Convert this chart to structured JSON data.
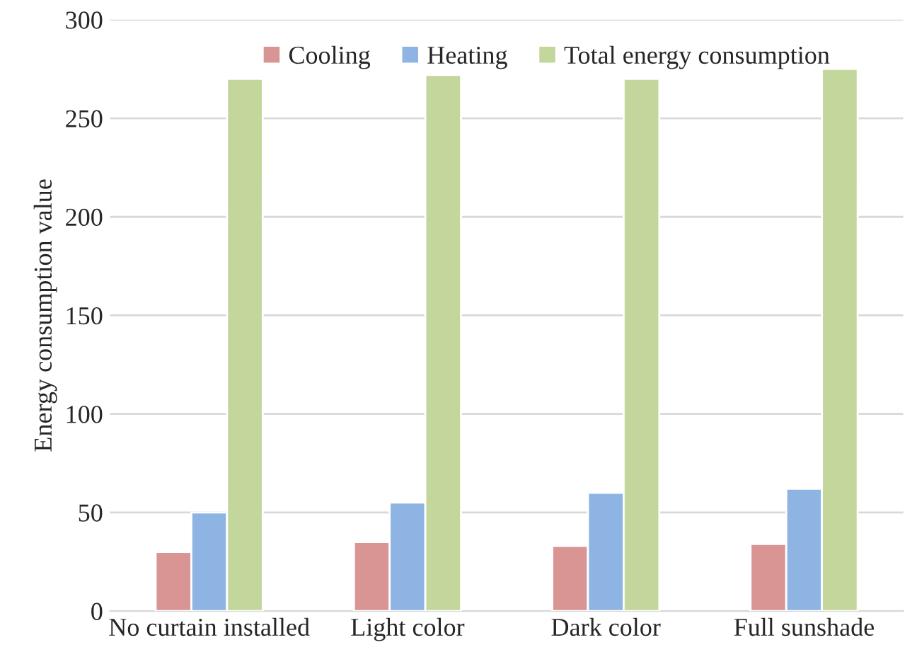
{
  "chart_data": {
    "type": "bar",
    "ylabel": "Energy consumption value",
    "categories": [
      "No curtain installed",
      "Light color",
      "Dark color",
      "Full sunshade"
    ],
    "series": [
      {
        "name": "Cooling",
        "color": "#d99594",
        "values": [
          30,
          35,
          33,
          34
        ]
      },
      {
        "name": "Heating",
        "color": "#8eb4e3",
        "values": [
          50,
          55,
          60,
          62
        ]
      },
      {
        "name": "Total energy consumption",
        "color": "#c3d69b",
        "values": [
          270,
          272,
          270,
          275
        ]
      }
    ],
    "ylim": [
      0,
      300
    ],
    "yticks": [
      0,
      50,
      100,
      150,
      200,
      250,
      300
    ],
    "grid": "y",
    "legend": "top"
  }
}
